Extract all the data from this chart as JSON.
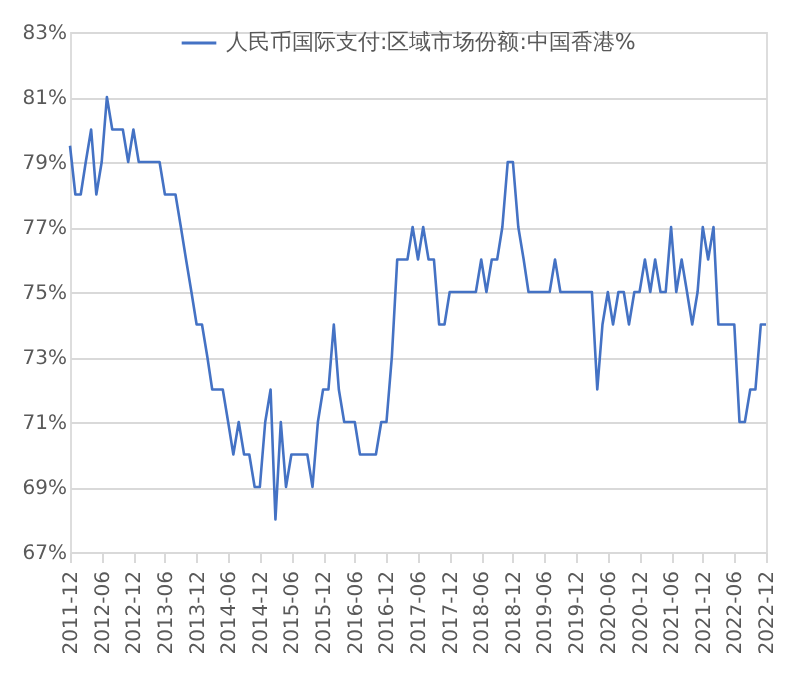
{
  "chart_data": {
    "type": "line",
    "x": [
      "2011-12",
      "2012-01",
      "2012-02",
      "2012-03",
      "2012-04",
      "2012-05",
      "2012-06",
      "2012-07",
      "2012-08",
      "2012-09",
      "2012-10",
      "2012-11",
      "2012-12",
      "2013-01",
      "2013-02",
      "2013-03",
      "2013-04",
      "2013-05",
      "2013-06",
      "2013-07",
      "2013-08",
      "2013-09",
      "2013-10",
      "2013-11",
      "2013-12",
      "2014-01",
      "2014-02",
      "2014-03",
      "2014-04",
      "2014-05",
      "2014-06",
      "2014-07",
      "2014-08",
      "2014-09",
      "2014-10",
      "2014-11",
      "2014-12",
      "2015-01",
      "2015-02",
      "2015-03",
      "2015-04",
      "2015-05",
      "2015-06",
      "2015-07",
      "2015-08",
      "2015-09",
      "2015-10",
      "2015-11",
      "2015-12",
      "2016-01",
      "2016-02",
      "2016-03",
      "2016-04",
      "2016-05",
      "2016-06",
      "2016-07",
      "2016-08",
      "2016-09",
      "2016-10",
      "2016-11",
      "2016-12",
      "2017-01",
      "2017-02",
      "2017-03",
      "2017-04",
      "2017-05",
      "2017-06",
      "2017-07",
      "2017-08",
      "2017-09",
      "2017-10",
      "2017-11",
      "2017-12",
      "2018-01",
      "2018-02",
      "2018-03",
      "2018-04",
      "2018-05",
      "2018-06",
      "2018-07",
      "2018-08",
      "2018-09",
      "2018-10",
      "2018-11",
      "2018-12",
      "2019-01",
      "2019-02",
      "2019-03",
      "2019-04",
      "2019-05",
      "2019-06",
      "2019-07",
      "2019-08",
      "2019-09",
      "2019-10",
      "2019-11",
      "2019-12",
      "2020-01",
      "2020-02",
      "2020-03",
      "2020-04",
      "2020-05",
      "2020-06",
      "2020-07",
      "2020-08",
      "2020-09",
      "2020-10",
      "2020-11",
      "2020-12",
      "2021-01",
      "2021-02",
      "2021-03",
      "2021-04",
      "2021-05",
      "2021-06",
      "2021-07",
      "2021-08",
      "2021-09",
      "2021-10",
      "2021-11",
      "2021-12",
      "2022-01",
      "2022-02",
      "2022-03",
      "2022-04",
      "2022-05",
      "2022-06",
      "2022-07",
      "2022-08",
      "2022-09",
      "2022-10",
      "2022-11",
      "2022-12"
    ],
    "series": [
      {
        "name": "人民币国际支付:区域市场份额:中国香港%",
        "color": "#4472c4",
        "values": [
          79.5,
          78,
          78,
          79,
          80,
          78,
          79,
          81,
          80,
          80,
          80,
          79,
          80,
          79,
          79,
          79,
          79,
          79,
          78,
          78,
          78,
          77,
          76,
          75,
          74,
          74,
          73,
          72,
          72,
          72,
          71,
          70,
          71,
          70,
          70,
          69,
          69,
          71,
          72,
          68,
          71,
          69,
          70,
          70,
          70,
          70,
          69,
          71,
          72,
          72,
          74,
          72,
          71,
          71,
          71,
          70,
          70,
          70,
          70,
          71,
          71,
          73,
          76,
          76,
          76,
          77,
          76,
          77,
          76,
          76,
          74,
          74,
          75,
          75,
          75,
          75,
          75,
          75,
          76,
          75,
          76,
          76,
          77,
          79,
          79,
          77,
          76,
          75,
          75,
          75,
          75,
          75,
          76,
          75,
          75,
          75,
          75,
          75,
          75,
          75,
          72,
          74,
          75,
          74,
          75,
          75,
          74,
          75,
          75,
          76,
          75,
          76,
          75,
          75,
          77,
          75,
          76,
          75,
          74,
          75,
          77,
          76,
          77,
          74,
          74,
          74,
          74,
          71,
          71,
          72,
          72,
          74,
          74
        ]
      }
    ],
    "xlim": [
      "2011-12",
      "2022-12"
    ],
    "xticks": [
      "2011-12",
      "2012-06",
      "2012-12",
      "2013-06",
      "2013-12",
      "2014-06",
      "2014-12",
      "2015-06",
      "2015-12",
      "2016-06",
      "2016-12",
      "2017-06",
      "2017-12",
      "2018-06",
      "2018-12",
      "2019-06",
      "2019-12",
      "2020-06",
      "2020-12",
      "2021-06",
      "2021-12",
      "2022-06",
      "2022-12"
    ],
    "ylim": [
      67,
      83
    ],
    "yticks": [
      {
        "value": 67,
        "label": "67%"
      },
      {
        "value": 69,
        "label": "69%"
      },
      {
        "value": 71,
        "label": "71%"
      },
      {
        "value": 73,
        "label": "73%"
      },
      {
        "value": 75,
        "label": "75%"
      },
      {
        "value": 77,
        "label": "77%"
      },
      {
        "value": 79,
        "label": "79%"
      },
      {
        "value": 81,
        "label": "81%"
      },
      {
        "value": 83,
        "label": "83%"
      }
    ],
    "grid": "y",
    "legend": "top",
    "marker": "none",
    "line_style": "solid"
  }
}
